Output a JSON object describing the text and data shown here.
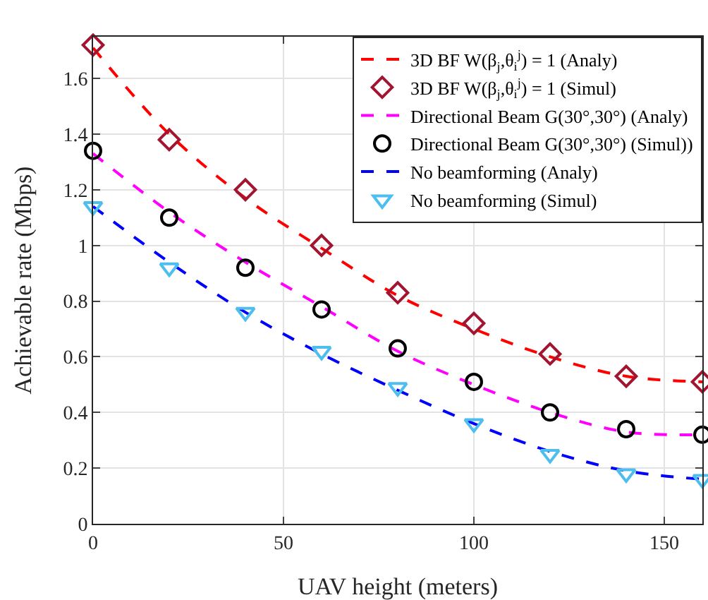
{
  "chart_data": {
    "type": "line",
    "xlabel": "UAV height (meters)",
    "ylabel": "Achievable rate (Mbps)",
    "x": [
      0,
      20,
      40,
      60,
      80,
      100,
      120,
      140,
      160
    ],
    "xlim": [
      0,
      160
    ],
    "xticks": [
      0,
      50,
      100,
      150
    ],
    "ylim": [
      0,
      1.75
    ],
    "yticks": [
      0,
      0.2,
      0.4,
      0.6,
      0.8,
      1,
      1.2,
      1.4,
      1.6
    ],
    "grid": true,
    "legend": "top right",
    "series": [
      {
        "name": "3D BF W(β$_{j}$,θ$_{i}$$^{j}$) = 1 (Analy)",
        "line_style": "dashed",
        "marker": "none",
        "color": "#ff0000",
        "values": [
          1.71,
          1.4,
          1.17,
          0.99,
          0.82,
          0.7,
          0.6,
          0.53,
          0.51
        ]
      },
      {
        "name": "3D BF W(β$_{j}$,θ$_{i}$$^{j}$) = 1 (Simul)",
        "type": "scatter",
        "marker": "diamond",
        "color": "#a2142f",
        "values": [
          1.72,
          1.38,
          1.2,
          1.0,
          0.83,
          0.72,
          0.61,
          0.53,
          0.51
        ]
      },
      {
        "name": "Directional Beam G(30°,30°) (Analy)",
        "line_style": "dashed",
        "marker": "none",
        "color": "#ff00ff",
        "values": [
          1.33,
          1.12,
          0.94,
          0.78,
          0.62,
          0.5,
          0.4,
          0.33,
          0.32
        ]
      },
      {
        "name": "Directional Beam G(30°,30°) (Simul))",
        "type": "scatter",
        "marker": "circle",
        "color": "#000000",
        "values": [
          1.34,
          1.1,
          0.92,
          0.77,
          0.63,
          0.51,
          0.4,
          0.34,
          0.32
        ]
      },
      {
        "name": "No beamforming (Analy)",
        "line_style": "dashed",
        "marker": "none",
        "color": "#0000ff",
        "values": [
          1.14,
          0.94,
          0.76,
          0.61,
          0.48,
          0.36,
          0.26,
          0.19,
          0.16
        ]
      },
      {
        "name": "No beamforming (Simul)",
        "type": "scatter",
        "marker": "triangle",
        "color": "#4dbeee",
        "values": [
          1.14,
          0.92,
          0.76,
          0.62,
          0.49,
          0.36,
          0.25,
          0.18,
          0.16
        ]
      }
    ]
  }
}
